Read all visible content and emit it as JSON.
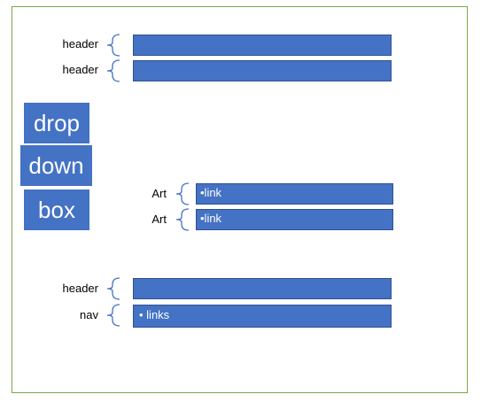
{
  "labels": {
    "header1": "header",
    "header2": "header",
    "art1": "Art",
    "art2": "Art",
    "header3": "header",
    "nav": "nav"
  },
  "bars": {
    "art1": "•link",
    "art2": "•link",
    "nav": "• links"
  },
  "dropdown": {
    "word1": "drop",
    "word2": "down",
    "word3": "box"
  },
  "colors": {
    "bar_fill": "#4472c4",
    "brace": "#4472c4",
    "frame": "#70ad47"
  }
}
